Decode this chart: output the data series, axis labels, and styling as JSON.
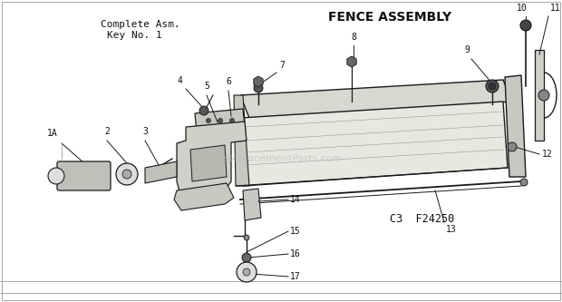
{
  "title": "FENCE ASSEMBLY",
  "subtitle_line1": "Complete Asm.",
  "subtitle_line2": "Key No. 1",
  "model_text": "C3  F24250",
  "bg_color": "#ffffff",
  "draw_color": "#1a1a1a",
  "text_color": "#111111",
  "gray_fill": "#c8c8c8",
  "light_fill": "#e8e8e4",
  "watermark": "eReplacementParts.com",
  "fig_width": 6.2,
  "fig_height": 3.33,
  "dpi": 100
}
